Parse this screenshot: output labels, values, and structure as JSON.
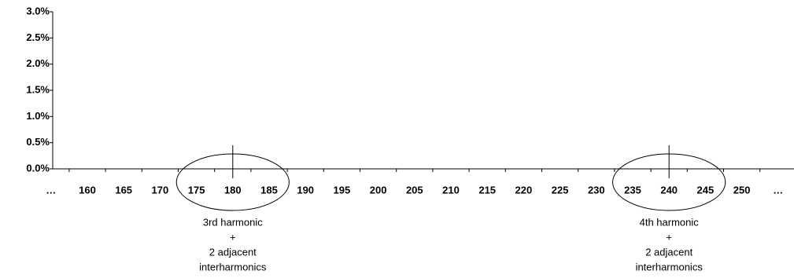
{
  "chart_data": {
    "type": "bar",
    "color": "#000000",
    "categories": [
      "…",
      "160",
      "165",
      "170",
      "175",
      "180",
      "185",
      "190",
      "195",
      "200",
      "205",
      "210",
      "215",
      "220",
      "225",
      "230",
      "235",
      "240",
      "245",
      "250",
      "…"
    ],
    "values": [
      0,
      0,
      0,
      0,
      0,
      0.45,
      0,
      0,
      0,
      0,
      0,
      0,
      0,
      0,
      0,
      0,
      0,
      0.45,
      0,
      0,
      0
    ],
    "ylim": [
      0,
      3
    ],
    "yticks": [
      {
        "value": 0,
        "label": "0.0%"
      },
      {
        "value": 0.5,
        "label": "0.5%"
      },
      {
        "value": 1,
        "label": "1.0%"
      },
      {
        "value": 1.5,
        "label": "1.5%"
      },
      {
        "value": 2,
        "label": "2.0%"
      },
      {
        "value": 2.5,
        "label": "2.5%"
      },
      {
        "value": 3,
        "label": "3.0%"
      }
    ],
    "annotations": [
      {
        "category": "180",
        "lines": [
          "3rd harmonic",
          "+",
          "2 adjacent",
          "interharmonics"
        ]
      },
      {
        "category": "240",
        "lines": [
          "4th harmonic",
          "+",
          "2 adjacent",
          "interharmonics"
        ]
      }
    ]
  }
}
